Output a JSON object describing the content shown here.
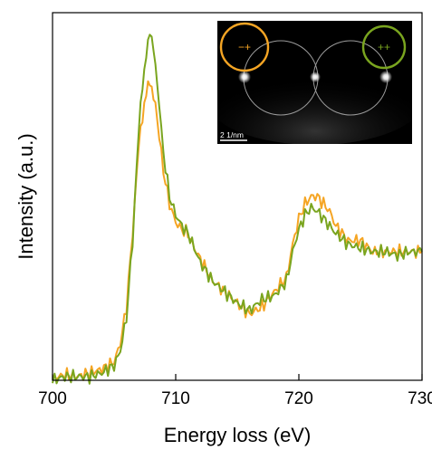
{
  "chart_data": {
    "type": "line",
    "title": "",
    "xlabel": "Energy loss (eV)",
    "ylabel": "Intensity (a.u.)",
    "xlim": [
      700,
      730
    ],
    "ylim": [
      0,
      1.0
    ],
    "xticks": [
      "700",
      "710",
      "720",
      "730"
    ],
    "yticks_shown": false,
    "grid": false,
    "legend": "none",
    "series": [
      {
        "color": "#f5a524",
        "x": [
          700,
          701,
          702,
          703,
          704,
          705,
          705.5,
          706,
          706.5,
          707,
          707.3,
          707.6,
          707.9,
          708.2,
          708.5,
          709,
          709.5,
          710,
          710.5,
          711,
          711.5,
          712,
          713,
          714,
          715,
          716,
          717,
          718,
          719,
          719.5,
          720,
          720.5,
          721,
          721.5,
          722,
          722.5,
          723,
          724,
          725,
          726,
          727,
          728,
          729,
          730
        ],
        "y": [
          0.005,
          0.015,
          0.01,
          0.02,
          0.03,
          0.05,
          0.1,
          0.2,
          0.4,
          0.64,
          0.72,
          0.78,
          0.81,
          0.78,
          0.71,
          0.57,
          0.48,
          0.43,
          0.41,
          0.4,
          0.36,
          0.33,
          0.27,
          0.24,
          0.21,
          0.18,
          0.2,
          0.24,
          0.28,
          0.37,
          0.44,
          0.48,
          0.5,
          0.5,
          0.48,
          0.46,
          0.42,
          0.38,
          0.38,
          0.35,
          0.35,
          0.35,
          0.35,
          0.35
        ]
      },
      {
        "color": "#7aa51f",
        "x": [
          700,
          701,
          702,
          703,
          704,
          705,
          705.5,
          706,
          706.5,
          707,
          707.3,
          707.6,
          707.9,
          708.2,
          708.5,
          709,
          709.5,
          710,
          710.5,
          711,
          711.5,
          712,
          713,
          714,
          715,
          716,
          717,
          718,
          719,
          719.5,
          720,
          720.5,
          721,
          721.5,
          722,
          722.5,
          723,
          724,
          725,
          726,
          727,
          728,
          729,
          730
        ],
        "y": [
          0.0,
          0.01,
          0.01,
          0.01,
          0.02,
          0.04,
          0.08,
          0.17,
          0.38,
          0.68,
          0.8,
          0.89,
          0.94,
          0.91,
          0.81,
          0.62,
          0.5,
          0.45,
          0.42,
          0.4,
          0.36,
          0.32,
          0.27,
          0.24,
          0.21,
          0.19,
          0.22,
          0.23,
          0.27,
          0.35,
          0.41,
          0.45,
          0.47,
          0.46,
          0.44,
          0.42,
          0.4,
          0.37,
          0.36,
          0.35,
          0.35,
          0.34,
          0.35,
          0.35
        ]
      }
    ],
    "inset": {
      "background": "#000000",
      "scalebar_label": "2 1/nm",
      "markers": [
        {
          "label": "−+",
          "color": "#f5a524"
        },
        {
          "label": "++",
          "color": "#7aa51f"
        }
      ]
    }
  }
}
